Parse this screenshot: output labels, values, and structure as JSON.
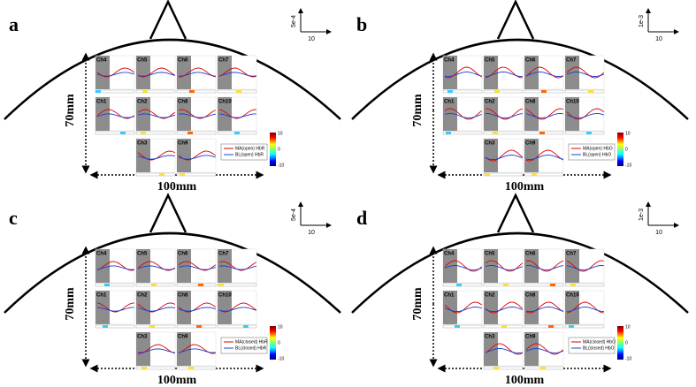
{
  "panels": [
    {
      "label": "a",
      "height_label": "70mm",
      "width_label": "100mm",
      "scale": {
        "y": "5e-4",
        "x": "10"
      },
      "channels": [
        "Ch4",
        "Ch5",
        "Ch6",
        "Ch7",
        "Ch1",
        "Ch2",
        "Ch8",
        "Ch10",
        "Ch3",
        "Ch9"
      ],
      "legend": [
        "MA(open) HbR",
        "BL(open) HbR"
      ],
      "colorbar": [
        "10",
        "0",
        "-10"
      ]
    },
    {
      "label": "b",
      "height_label": "70mm",
      "width_label": "100mm",
      "scale": {
        "y": "1e-3",
        "x": "10"
      },
      "channels": [
        "Ch4",
        "Ch5",
        "Ch6",
        "Ch7",
        "Ch1",
        "Ch2",
        "Ch8",
        "Ch10",
        "Ch3",
        "Ch9"
      ],
      "legend": [
        "MA(open) HbO",
        "BL(open) HbO"
      ],
      "colorbar": [
        "10",
        "0",
        "-10"
      ]
    },
    {
      "label": "c",
      "height_label": "70mm",
      "width_label": "100mm",
      "scale": {
        "y": "5e-4",
        "x": "10"
      },
      "channels": [
        "Ch4",
        "Ch5",
        "Ch6",
        "Ch7",
        "Ch1",
        "Ch2",
        "Ch8",
        "Ch10",
        "Ch3",
        "Ch9"
      ],
      "legend": [
        "MA(closed) HbR",
        "BL(closed) HbR"
      ],
      "colorbar": [
        "10",
        "0",
        "-10"
      ]
    },
    {
      "label": "d",
      "height_label": "70mm",
      "width_label": "100mm",
      "scale": {
        "y": "1e-3",
        "x": "10"
      },
      "channels": [
        "Ch4",
        "Ch5",
        "Ch6",
        "Ch7",
        "Ch1",
        "Ch2",
        "Ch8",
        "Ch10",
        "Ch3",
        "Ch9"
      ],
      "legend": [
        "MA(closed) HbO",
        "BL(closed) HbO"
      ],
      "colorbar": [
        "10",
        "0",
        "-10"
      ]
    }
  ]
}
